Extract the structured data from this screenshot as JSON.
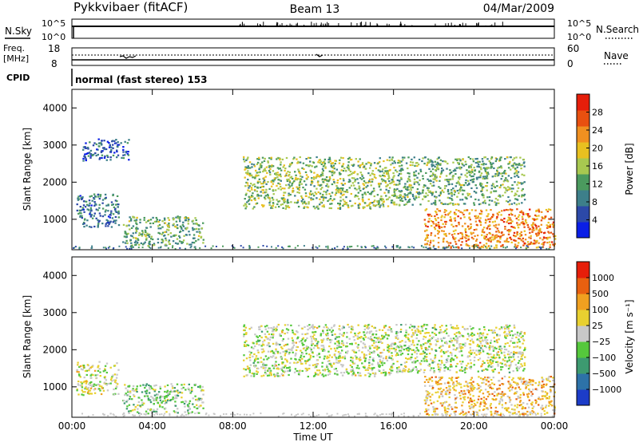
{
  "header": {
    "station": "Pykkvibaer (fitACF)",
    "beam": "Beam 13",
    "date": "04/Mar/2009"
  },
  "top_panels": {
    "nsky_label": "N.Sky",
    "nsky_ticks": [
      "10^5",
      "10^0"
    ],
    "nsearch_label": "N.Search",
    "nsearch_ticks": [
      "10^5",
      "10^0"
    ],
    "freq_label": "Freq.",
    "freq_unit": "[MHz]",
    "freq_ticks": [
      "18",
      "8"
    ],
    "nave_label": "Nave",
    "nave_ticks": [
      "60",
      "0"
    ],
    "cpid_label": "CPID",
    "cpid_text": "normal (fast stereo) 153"
  },
  "chart_data": [
    {
      "type": "heatmap",
      "title": "",
      "xlabel": "Time UT",
      "ylabel": "Slant Range [km]",
      "x_ticks": [
        "00:00",
        "04:00",
        "08:00",
        "12:00",
        "16:00",
        "20:00",
        "00:00"
      ],
      "xlim_hours": [
        0,
        24
      ],
      "ylim": [
        180,
        4500
      ],
      "y_ticks": [
        1000,
        2000,
        3000,
        4000
      ],
      "colorbar": {
        "label": "Power [dB]",
        "ticks": [
          "28",
          "24",
          "20",
          "16",
          "12",
          "8",
          "4"
        ],
        "range": [
          0,
          30
        ],
        "colors": [
          "#0a1ee6",
          "#2c49a8",
          "#3d7f8a",
          "#4b9a5e",
          "#a8c850",
          "#e8c020",
          "#f09020",
          "#e85010",
          "#e61e0a"
        ]
      },
      "regions": [
        {
          "t0": 0.2,
          "t1": 2.3,
          "r0": 800,
          "r1": 1700,
          "value": 8
        },
        {
          "t0": 0.5,
          "t1": 2.8,
          "r0": 2600,
          "r1": 3200,
          "value": 6
        },
        {
          "t0": 2.5,
          "t1": 6.5,
          "r0": 300,
          "r1": 1100,
          "value": 12
        },
        {
          "t0": 8.5,
          "t1": 16.0,
          "r0": 1300,
          "r1": 2700,
          "value": 14
        },
        {
          "t0": 16.0,
          "t1": 22.5,
          "r0": 1400,
          "r1": 2700,
          "value": 12
        },
        {
          "t0": 17.5,
          "t1": 24.0,
          "r0": 250,
          "r1": 1300,
          "value": 22
        }
      ]
    },
    {
      "type": "heatmap",
      "title": "",
      "xlabel": "Time UT",
      "ylabel": "Slant Range [km]",
      "x_ticks": [
        "00:00",
        "04:00",
        "08:00",
        "12:00",
        "16:00",
        "20:00",
        "00:00"
      ],
      "xlim_hours": [
        0,
        24
      ],
      "ylim": [
        180,
        4500
      ],
      "y_ticks": [
        1000,
        2000,
        3000,
        4000
      ],
      "colorbar": {
        "label": "Velocity [m s⁻¹]",
        "ticks": [
          "1000",
          "500",
          "100",
          "25",
          "−25",
          "−100",
          "−500",
          "−1000"
        ],
        "range": [
          -1000,
          1000
        ],
        "colors": [
          "#1c3cc8",
          "#2d72a8",
          "#3d9a70",
          "#55c83c",
          "#c8c8c8",
          "#e8d030",
          "#f0a020",
          "#e86010",
          "#e61e0a"
        ]
      },
      "regions": [
        {
          "t0": 0.2,
          "t1": 2.3,
          "r0": 800,
          "r1": 1700,
          "value": 25
        },
        {
          "t0": 2.5,
          "t1": 6.5,
          "r0": 300,
          "r1": 1100,
          "value": -150
        },
        {
          "t0": 8.5,
          "t1": 16.0,
          "r0": 1300,
          "r1": 2700,
          "value": 0
        },
        {
          "t0": 16.0,
          "t1": 22.5,
          "r0": 1400,
          "r1": 2700,
          "value": 0
        },
        {
          "t0": 17.5,
          "t1": 24.0,
          "r0": 250,
          "r1": 1300,
          "value": 300
        }
      ]
    }
  ]
}
